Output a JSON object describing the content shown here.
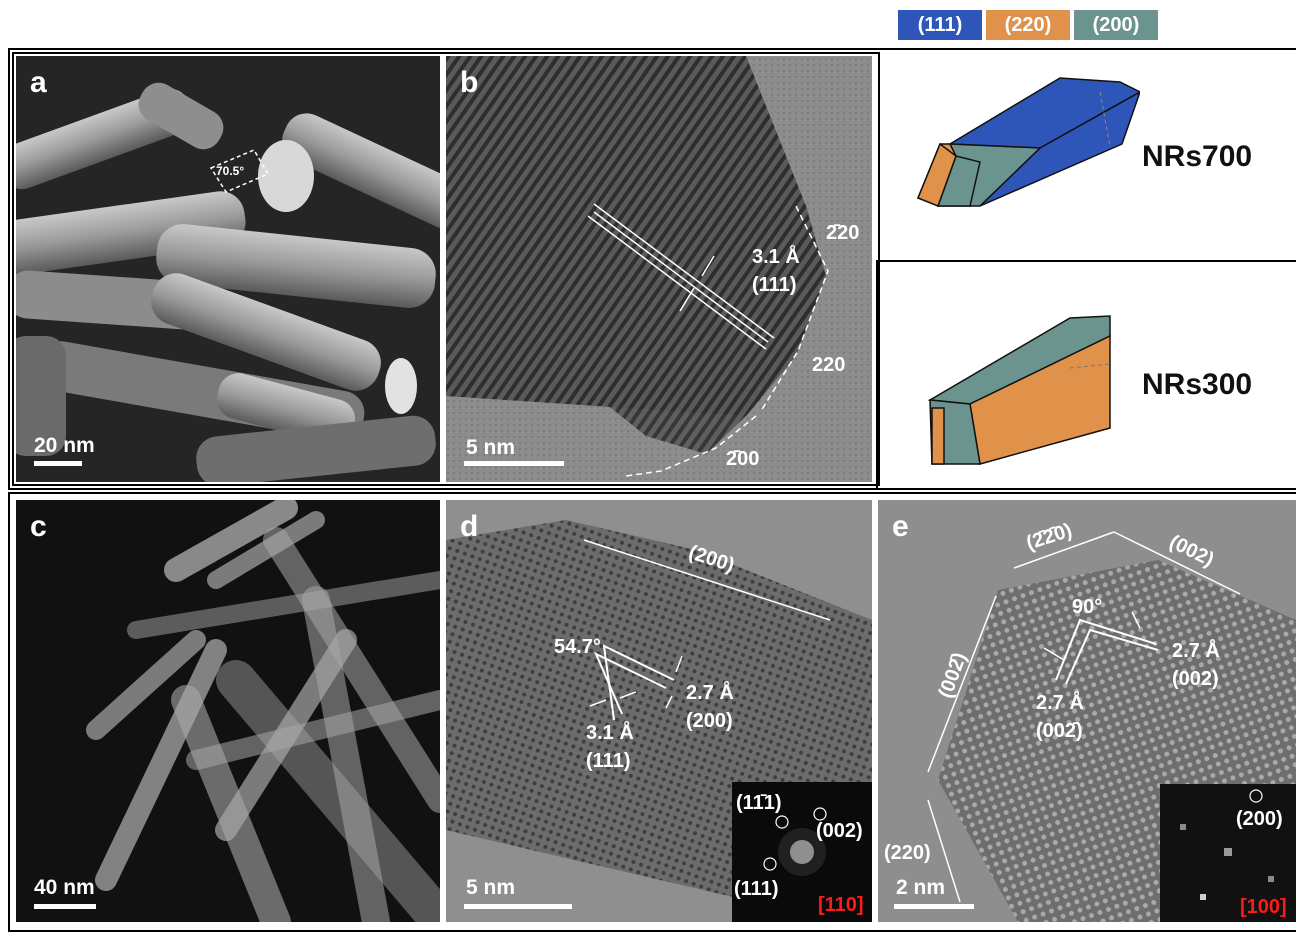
{
  "legend": [
    {
      "label": "(111)",
      "color": "#2e56b8"
    },
    {
      "label": "(220)",
      "color": "#e0924a"
    },
    {
      "label": "(200)",
      "color": "#6b948e"
    }
  ],
  "panels": {
    "a": {
      "label": "a",
      "angle": "70.5°",
      "scale": "20 nm"
    },
    "b": {
      "label": "b",
      "facet_top": "2̄20",
      "spacing": "3.1 Å",
      "plane": "(111)",
      "facet_right": "220",
      "facet_bottom": "2̄00",
      "scale": "5 nm"
    },
    "c": {
      "label": "c",
      "scale": "40 nm"
    },
    "d": {
      "label": "d",
      "plane_top": "(200)",
      "angle": "54.7°",
      "spacing1": "2.7 Å",
      "plane1": "(200)",
      "spacing2": "3.1 Å",
      "plane2": "(111)",
      "fft_a": "(11̄1)",
      "fft_b": "(002)",
      "fft_c": "(111)",
      "zone": "[110]",
      "scale": "5 nm"
    },
    "e": {
      "label": "e",
      "plane_a": "(2̄2̄0)",
      "plane_b": "(002)",
      "plane_c": "(002̄)",
      "angle": "90°",
      "spacing1": "2.7 Å",
      "plane1": "(002)",
      "spacing2": "2.7 Å",
      "plane2": "(002̄)",
      "plane_d": "(220)",
      "fft_a": "(200)",
      "zone": "[100]",
      "scale": "2 nm"
    }
  },
  "models": {
    "top": {
      "name": "NRs700"
    },
    "bottom": {
      "name": "NRs300"
    }
  }
}
